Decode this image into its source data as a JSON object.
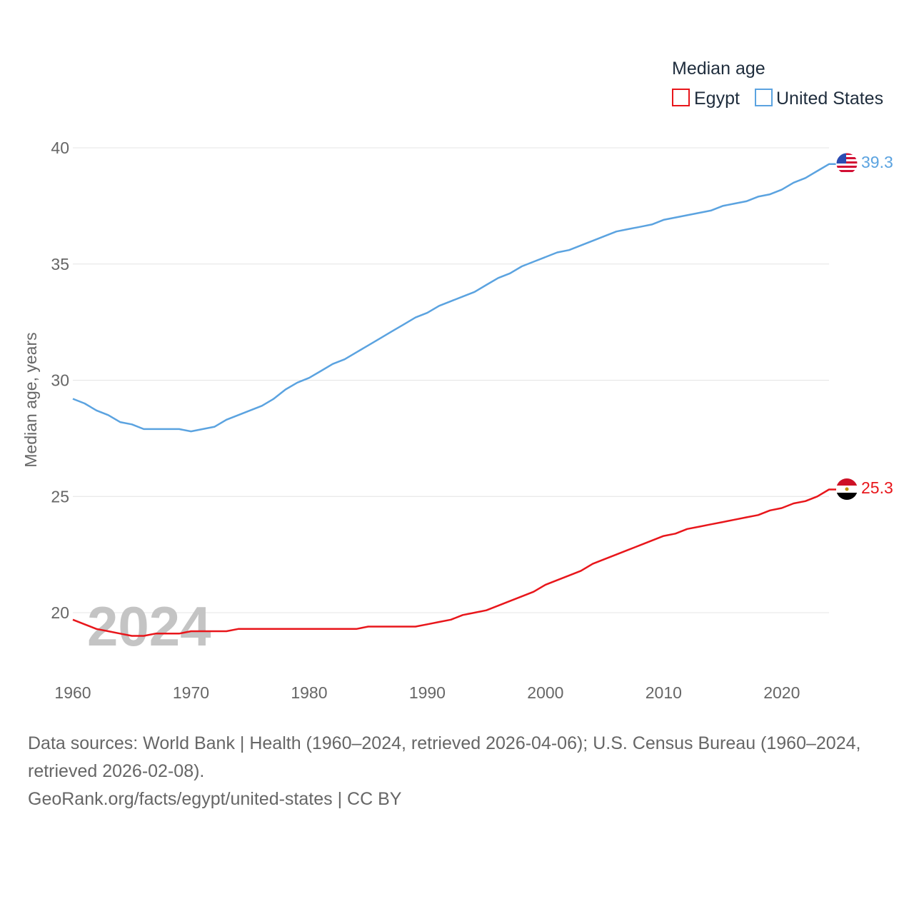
{
  "chart_data": {
    "type": "line",
    "ylabel": "Median age, years",
    "ylim": [
      18,
      41.5
    ],
    "xlim": [
      1960,
      2024
    ],
    "yticks": [
      20,
      25,
      30,
      35,
      40
    ],
    "xticks": [
      1960,
      1970,
      1980,
      1990,
      2000,
      2010,
      2020
    ],
    "grid": true,
    "legend": {
      "title": "Median age",
      "position": "top-right"
    },
    "year_watermark": "2024",
    "x": [
      1960,
      1961,
      1962,
      1963,
      1964,
      1965,
      1966,
      1967,
      1968,
      1969,
      1970,
      1971,
      1972,
      1973,
      1974,
      1975,
      1976,
      1977,
      1978,
      1979,
      1980,
      1981,
      1982,
      1983,
      1984,
      1985,
      1986,
      1987,
      1988,
      1989,
      1990,
      1991,
      1992,
      1993,
      1994,
      1995,
      1996,
      1997,
      1998,
      1999,
      2000,
      2001,
      2002,
      2003,
      2004,
      2005,
      2006,
      2007,
      2008,
      2009,
      2010,
      2011,
      2012,
      2013,
      2014,
      2015,
      2016,
      2017,
      2018,
      2019,
      2020,
      2021,
      2022,
      2023,
      2024
    ],
    "series": [
      {
        "name": "Egypt",
        "color": "#e8161b",
        "end_label": "25.3",
        "flag": "egypt-flag",
        "values": [
          19.7,
          19.5,
          19.3,
          19.2,
          19.1,
          19.0,
          19.0,
          19.1,
          19.1,
          19.1,
          19.2,
          19.2,
          19.2,
          19.2,
          19.3,
          19.3,
          19.3,
          19.3,
          19.3,
          19.3,
          19.3,
          19.3,
          19.3,
          19.3,
          19.3,
          19.4,
          19.4,
          19.4,
          19.4,
          19.4,
          19.5,
          19.6,
          19.7,
          19.9,
          20.0,
          20.1,
          20.3,
          20.5,
          20.7,
          20.9,
          21.2,
          21.4,
          21.6,
          21.8,
          22.1,
          22.3,
          22.5,
          22.7,
          22.9,
          23.1,
          23.3,
          23.4,
          23.6,
          23.7,
          23.8,
          23.9,
          24.0,
          24.1,
          24.2,
          24.4,
          24.5,
          24.7,
          24.8,
          25.0,
          25.3
        ]
      },
      {
        "name": "United States",
        "color": "#5ba3e0",
        "end_label": "39.3",
        "flag": "usa-flag",
        "values": [
          29.2,
          29.0,
          28.7,
          28.5,
          28.2,
          28.1,
          27.9,
          27.9,
          27.9,
          27.9,
          27.8,
          27.9,
          28.0,
          28.3,
          28.5,
          28.7,
          28.9,
          29.2,
          29.6,
          29.9,
          30.1,
          30.4,
          30.7,
          30.9,
          31.2,
          31.5,
          31.8,
          32.1,
          32.4,
          32.7,
          32.9,
          33.2,
          33.4,
          33.6,
          33.8,
          34.1,
          34.4,
          34.6,
          34.9,
          35.1,
          35.3,
          35.5,
          35.6,
          35.8,
          36.0,
          36.2,
          36.4,
          36.5,
          36.6,
          36.7,
          36.9,
          37.0,
          37.1,
          37.2,
          37.3,
          37.5,
          37.6,
          37.7,
          37.9,
          38.0,
          38.2,
          38.5,
          38.7,
          39.0,
          39.3
        ]
      }
    ]
  },
  "footer": {
    "line1": "Data sources: World Bank | Health (1960–2024, retrieved 2026-04-06); U.S. Census Bureau (1960–2024, retrieved 2026-02-08).",
    "line2": "GeoRank.org/facts/egypt/united-states | CC BY"
  }
}
